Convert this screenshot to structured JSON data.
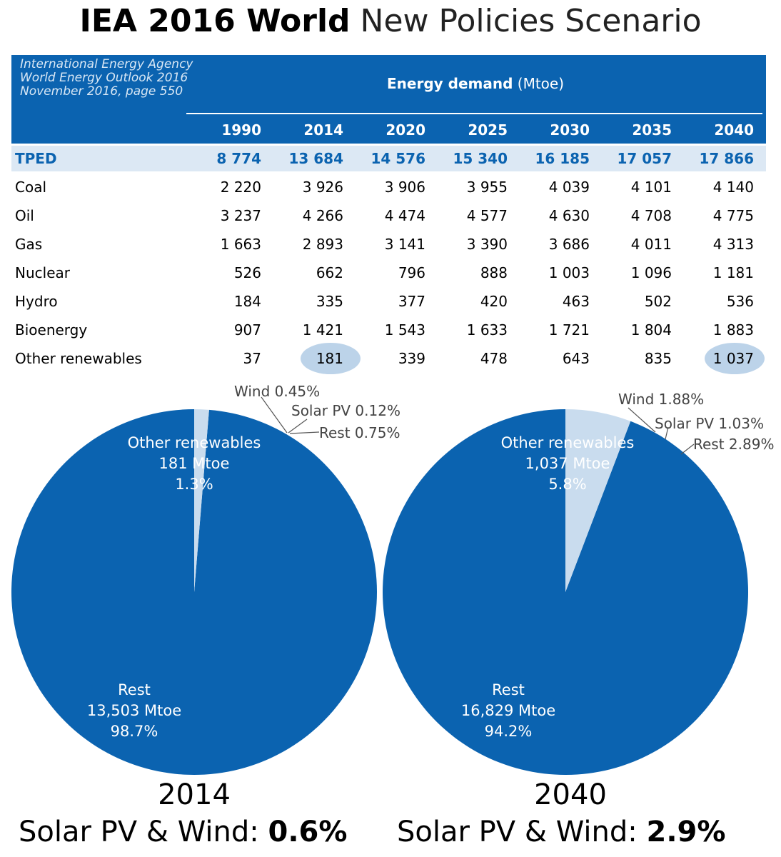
{
  "title": {
    "bold": "IEA 2016 World",
    "light": "New Policies Scenario"
  },
  "source": [
    "International Energy Agency",
    "World Energy Outlook 2016",
    "November 2016, page 550"
  ],
  "table": {
    "title_bold": "Energy demand",
    "title_unit": "(Mtoe)",
    "years": [
      "1990",
      "2014",
      "2020",
      "2025",
      "2030",
      "2035",
      "2040"
    ],
    "rows": [
      {
        "label": "TPED",
        "values": [
          "8 774",
          "13 684",
          "14 576",
          "15 340",
          "16 185",
          "17 057",
          "17 866"
        ]
      },
      {
        "label": "Coal",
        "values": [
          "2 220",
          "3 926",
          "3 906",
          "3 955",
          "4 039",
          "4 101",
          "4 140"
        ]
      },
      {
        "label": "Oil",
        "values": [
          "3 237",
          "4 266",
          "4 474",
          "4 577",
          "4 630",
          "4 708",
          "4 775"
        ]
      },
      {
        "label": "Gas",
        "values": [
          "1 663",
          "2 893",
          "3 141",
          "3 390",
          "3 686",
          "4 011",
          "4 313"
        ]
      },
      {
        "label": "Nuclear",
        "values": [
          "526",
          "662",
          "796",
          "888",
          "1 003",
          "1 096",
          "1 181"
        ]
      },
      {
        "label": "Hydro",
        "values": [
          "184",
          "335",
          "377",
          "420",
          "463",
          "502",
          "536"
        ]
      },
      {
        "label": "Bioenergy",
        "values": [
          "907",
          "1 421",
          "1 543",
          "1 633",
          "1 721",
          "1 804",
          "1 883"
        ]
      },
      {
        "label": "Other renewables",
        "values": [
          "37",
          "181",
          "339",
          "478",
          "643",
          "835",
          "1 037"
        ]
      }
    ]
  },
  "chart_data": [
    {
      "type": "pie",
      "title": "2014",
      "slices": [
        {
          "name": "Other renewables",
          "value_text": "181 Mtoe",
          "percent_text": "1.3%",
          "percent": 1.3,
          "color": "#c9dcee"
        },
        {
          "name": "Rest",
          "value_text": "13,503 Mtoe",
          "percent_text": "98.7%",
          "percent": 98.7,
          "color": "#0b63b0"
        }
      ],
      "callouts": [
        "Wind 0.45%",
        "Solar PV 0.12%",
        "Rest 0.75%"
      ],
      "summary_label": "Solar PV & Wind:",
      "summary_value": "0.6%"
    },
    {
      "type": "pie",
      "title": "2040",
      "slices": [
        {
          "name": "Other renewables",
          "value_text": "1,037 Mtoe",
          "percent_text": "5.8%",
          "percent": 5.8,
          "color": "#c9dcee"
        },
        {
          "name": "Rest",
          "value_text": "16,829 Mtoe",
          "percent_text": "94.2%",
          "percent": 94.2,
          "color": "#0b63b0"
        }
      ],
      "callouts": [
        "Wind 1.88%",
        "Solar PV 1.03%",
        "Rest 2.89%"
      ],
      "summary_label": "Solar PV & Wind:",
      "summary_value": "2.9%"
    }
  ]
}
